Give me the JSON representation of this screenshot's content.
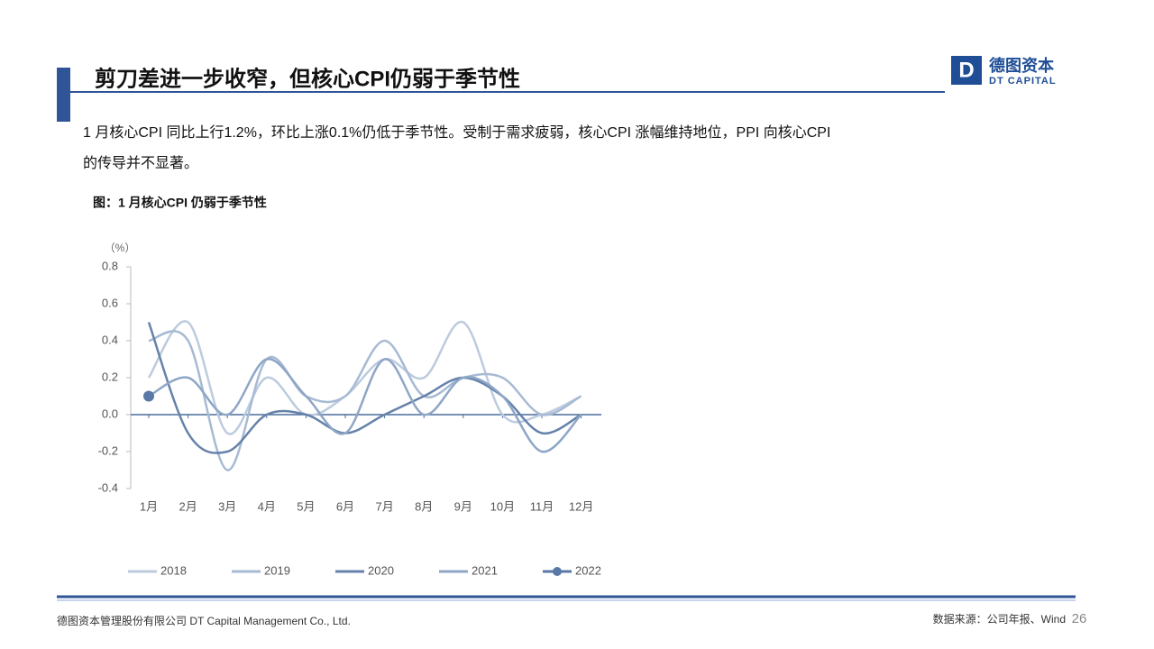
{
  "header": {
    "title": "剪刀差进一步收窄，但核心CPI仍弱于季节性"
  },
  "logo": {
    "cn": "德图资本",
    "en": "DT CAPITAL",
    "mark": "D"
  },
  "body": [
    "1 月核心CPI 同比上行1.2%，环比上涨0.1%仍低于季节性。受制于需求疲弱，核心CPI 涨幅维持地位，PPI 向核心CPI",
    "的传导并不显著。"
  ],
  "chart_data": {
    "type": "line",
    "title": "图：1 月核心CPI 仍弱于季节性",
    "y_label": "（%）",
    "categories": [
      "1月",
      "2月",
      "3月",
      "4月",
      "5月",
      "6月",
      "7月",
      "8月",
      "9月",
      "10月",
      "11月",
      "12月"
    ],
    "series": [
      {
        "name": "2018",
        "color": "#bccbde",
        "values": [
          0.2,
          0.5,
          -0.1,
          0.2,
          0.0,
          0.1,
          0.3,
          0.2,
          0.5,
          0.0,
          0.0,
          0.1
        ]
      },
      {
        "name": "2019",
        "color": "#a7bad3",
        "values": [
          0.4,
          0.4,
          -0.3,
          0.3,
          0.1,
          0.1,
          0.4,
          0.1,
          0.2,
          0.2,
          0.0,
          0.1
        ]
      },
      {
        "name": "2020",
        "color": "#6582aa",
        "values": [
          0.5,
          -0.1,
          -0.2,
          0.0,
          0.0,
          -0.1,
          0.0,
          0.1,
          0.2,
          0.1,
          -0.1,
          0.0
        ]
      },
      {
        "name": "2021",
        "color": "#8ea6c6",
        "values": [
          0.1,
          0.2,
          0.0,
          0.3,
          0.1,
          -0.1,
          0.3,
          0.0,
          0.2,
          0.1,
          -0.2,
          0.0
        ]
      },
      {
        "name": "2022",
        "color": "#5a78a5",
        "marker": true,
        "values": [
          0.1,
          null,
          null,
          null,
          null,
          null,
          null,
          null,
          null,
          null,
          null,
          null
        ]
      }
    ],
    "ylim": [
      -0.4,
      0.8
    ],
    "yticks": [
      -0.4,
      -0.2,
      {
        "value": 0,
        "label": "0.0"
      },
      0.2,
      0.4,
      0.6,
      0.8
    ]
  },
  "footer": {
    "company": "德图资本管理股份有限公司  DT Capital Management Co., Ltd.",
    "source": "数据来源：公司年报、Wind",
    "page": "26"
  }
}
